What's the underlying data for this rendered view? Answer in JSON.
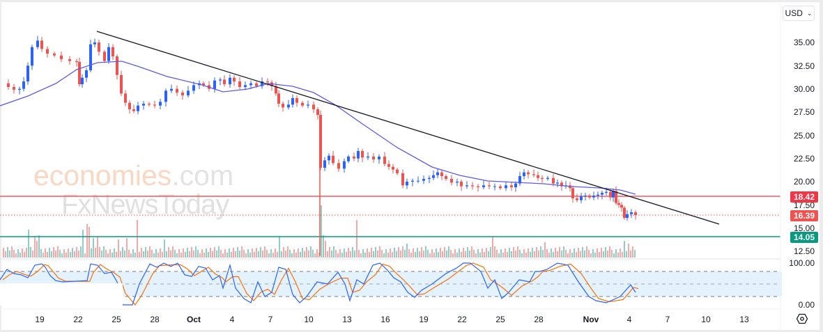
{
  "currency_selector": {
    "label": "USD",
    "icon": "chevron-down-icon"
  },
  "watermark": {
    "line1_main": "economies",
    "line1_suffix": ".com",
    "line2": "FxNewsToday"
  },
  "price_axis": {
    "labels": [
      "35.00",
      "32.50",
      "30.00",
      "27.50",
      "25.00",
      "22.50",
      "20.00",
      "17.50",
      "15.00",
      "12.50"
    ]
  },
  "price_tags": {
    "resistance": {
      "value": "18.42",
      "color": "#f23645"
    },
    "last_price": {
      "value": "16.39",
      "color": "#ef5350"
    },
    "support": {
      "value": "14.05",
      "color": "#089981"
    }
  },
  "stoch_axis": {
    "top": "100.00",
    "bottom": "0.00"
  },
  "time_axis": {
    "labels": [
      "19",
      "22",
      "25",
      "28",
      "Oct",
      "4",
      "7",
      "10",
      "13",
      "16",
      "19",
      "22",
      "25",
      "28",
      "Nov",
      "4",
      "7",
      "10",
      "13"
    ]
  },
  "settings_icon": "gear-icon",
  "colors": {
    "up_candle": "#2962ff",
    "down_candle": "#ef5350",
    "moving_average": "#5b5be6",
    "trendline": "#131722",
    "resistance_line": "#f23645",
    "support_line": "#089981",
    "volume_up": "#8ccfc4",
    "volume_down": "#f2a9a8",
    "stoch_k": "#2962ff",
    "stoch_d": "#ff6d00",
    "stoch_band": "#e3f2fd"
  },
  "chart_data": {
    "type": "candlestick",
    "title": "",
    "xlabel": "",
    "ylabel": "USD",
    "ylim": [
      11.5,
      37
    ],
    "grid": false,
    "x_ticks": [
      "19",
      "22",
      "25",
      "28",
      "Oct",
      "4",
      "7",
      "10",
      "13",
      "16",
      "19",
      "22",
      "25",
      "28",
      "Nov",
      "4",
      "7",
      "10",
      "13"
    ],
    "y_ticks": [
      35.0,
      32.5,
      30.0,
      27.5,
      25.0,
      22.5,
      20.0,
      17.5,
      15.0,
      12.5
    ],
    "price_path_approx": [
      {
        "date": "Sep 17",
        "close": 30.5
      },
      {
        "date": "Sep 18",
        "close": 30.0
      },
      {
        "date": "Sep 19",
        "close": 35.0
      },
      {
        "date": "Sep 20",
        "close": 34.0
      },
      {
        "date": "Sep 21",
        "close": 33.3
      },
      {
        "date": "Sep 22",
        "close": 31.0
      },
      {
        "date": "Sep 23",
        "close": 35.0
      },
      {
        "date": "Sep 24",
        "close": 34.2
      },
      {
        "date": "Sep 25",
        "close": 32.0
      },
      {
        "date": "Sep 26",
        "close": 28.0
      },
      {
        "date": "Sep 27",
        "close": 28.5
      },
      {
        "date": "Sep 28",
        "close": 28.3
      },
      {
        "date": "Sep 29",
        "close": 30.0
      },
      {
        "date": "Oct 1",
        "close": 29.8
      },
      {
        "date": "Oct 2",
        "close": 31.0
      },
      {
        "date": "Oct 4",
        "close": 30.8
      },
      {
        "date": "Oct 6",
        "close": 30.5
      },
      {
        "date": "Oct 7",
        "close": 30.5
      },
      {
        "date": "Oct 8",
        "close": 27.8
      },
      {
        "date": "Oct 9",
        "close": 28.3
      },
      {
        "date": "Oct 10",
        "close": 27.5
      },
      {
        "date": "Oct 11",
        "close": 21.0
      },
      {
        "date": "Oct 12",
        "close": 22.5
      },
      {
        "date": "Oct 13",
        "close": 22.8
      },
      {
        "date": "Oct 15",
        "close": 21.8
      },
      {
        "date": "Oct 16",
        "close": 19.5
      },
      {
        "date": "Oct 19",
        "close": 20.0
      },
      {
        "date": "Oct 20",
        "close": 20.8
      },
      {
        "date": "Oct 22",
        "close": 19.5
      },
      {
        "date": "Oct 24",
        "close": 19.5
      },
      {
        "date": "Oct 26",
        "close": 20.8
      },
      {
        "date": "Oct 28",
        "close": 20.0
      },
      {
        "date": "Oct 30",
        "close": 18.0
      },
      {
        "date": "Nov 1",
        "close": 18.7
      },
      {
        "date": "Nov 2",
        "close": 19.0
      },
      {
        "date": "Nov 3",
        "close": 16.4
      },
      {
        "date": "Nov 4",
        "close": 16.39
      }
    ],
    "series": [
      {
        "name": "Moving Average",
        "type": "line",
        "approx_values": [
          {
            "date": "Sep 17",
            "value": 28.0
          },
          {
            "date": "Sep 25",
            "value": 33.0
          },
          {
            "date": "Oct 4",
            "value": 29.8
          },
          {
            "date": "Oct 8",
            "value": 30.3
          },
          {
            "date": "Oct 13",
            "value": 26.0
          },
          {
            "date": "Oct 19",
            "value": 21.5
          },
          {
            "date": "Oct 25",
            "value": 20.0
          },
          {
            "date": "Oct 28",
            "value": 19.8
          },
          {
            "date": "Nov 4",
            "value": 18.8
          }
        ]
      },
      {
        "name": "Downtrend line",
        "type": "line",
        "points": [
          {
            "date": "Sep 23",
            "value": 36.2
          },
          {
            "date": "Nov 10",
            "value": 15.5
          }
        ]
      },
      {
        "name": "Resistance",
        "type": "hline",
        "value": 18.42
      },
      {
        "name": "Last price",
        "type": "hline",
        "value": 16.39
      },
      {
        "name": "Support",
        "type": "hline",
        "value": 14.05
      }
    ],
    "volume": {
      "note": "histogram under price, spikes around Sep 21-23, Sep 26, Oct 11"
    },
    "stochastic": {
      "ylim": [
        0,
        100
      ],
      "bands": [
        20,
        50,
        80
      ],
      "k_color": "#2962ff",
      "d_color": "#ff6d00",
      "last_k": 32,
      "last_d": 29
    }
  }
}
